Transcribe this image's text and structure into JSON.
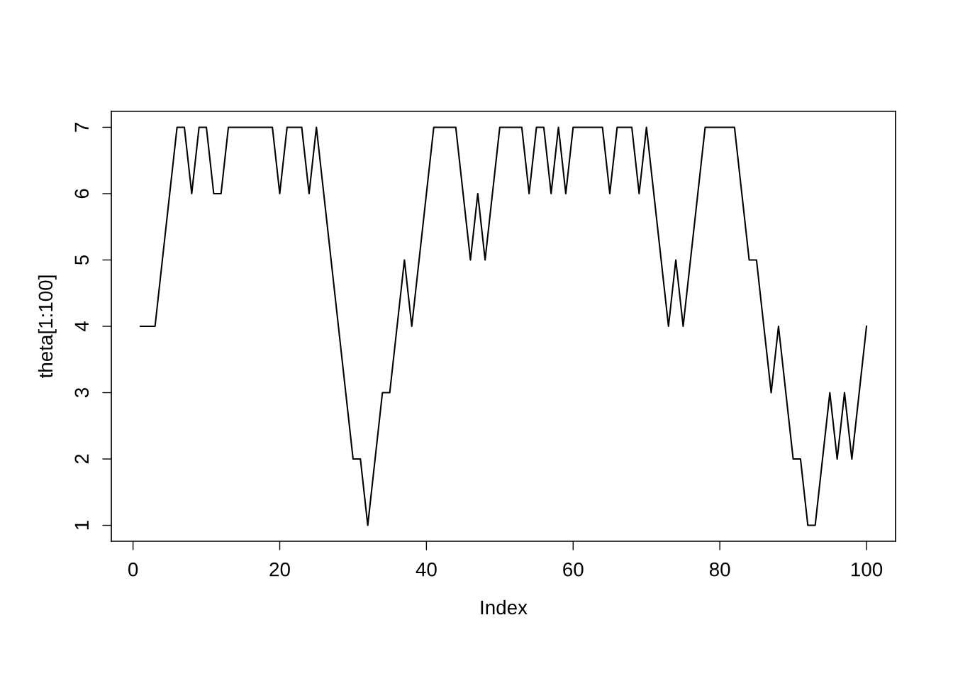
{
  "chart_data": {
    "type": "line",
    "xlabel": "Index",
    "ylabel": "theta[1:100]",
    "x": [
      1,
      2,
      3,
      4,
      5,
      6,
      7,
      8,
      9,
      10,
      11,
      12,
      13,
      14,
      15,
      16,
      17,
      18,
      19,
      20,
      21,
      22,
      23,
      24,
      25,
      26,
      27,
      28,
      29,
      30,
      31,
      32,
      33,
      34,
      35,
      36,
      37,
      38,
      39,
      40,
      41,
      42,
      43,
      44,
      45,
      46,
      47,
      48,
      49,
      50,
      51,
      52,
      53,
      54,
      55,
      56,
      57,
      58,
      59,
      60,
      61,
      62,
      63,
      64,
      65,
      66,
      67,
      68,
      69,
      70,
      71,
      72,
      73,
      74,
      75,
      76,
      77,
      78,
      79,
      80,
      81,
      82,
      83,
      84,
      85,
      86,
      87,
      88,
      89,
      90,
      91,
      92,
      93,
      94,
      95,
      96,
      97,
      98,
      99,
      100
    ],
    "series": [
      {
        "color": "#000000",
        "values": [
          4,
          4,
          4,
          5,
          6,
          7,
          7,
          6,
          7,
          7,
          6,
          6,
          7,
          7,
          7,
          7,
          7,
          7,
          7,
          6,
          7,
          7,
          7,
          6,
          7,
          6,
          5,
          4,
          3,
          2,
          2,
          1,
          2,
          3,
          3,
          4,
          5,
          4,
          5,
          6,
          7,
          7,
          7,
          7,
          6,
          5,
          6,
          5,
          6,
          7,
          7,
          7,
          7,
          6,
          7,
          7,
          6,
          7,
          6,
          7,
          7,
          7,
          7,
          7,
          6,
          7,
          7,
          7,
          6,
          7,
          6,
          5,
          4,
          5,
          4,
          5,
          6,
          7,
          7,
          7,
          7,
          7,
          6,
          5,
          5,
          4,
          3,
          4,
          3,
          2,
          2,
          1,
          1,
          2,
          3,
          2,
          3,
          2,
          3,
          4
        ]
      }
    ],
    "xlim": [
      -2.96,
      103.96
    ],
    "ylim": [
      0.76,
      7.24
    ],
    "xticks": [
      0,
      20,
      40,
      60,
      80,
      100
    ],
    "yticks": [
      1,
      2,
      3,
      4,
      5,
      6,
      7
    ],
    "grid": false,
    "marker": "none",
    "line_style": "solid"
  }
}
